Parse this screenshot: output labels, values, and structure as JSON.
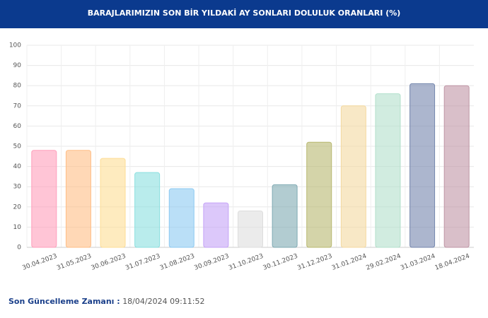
{
  "chart_data": {
    "type": "bar",
    "title": "BARAJLARIMIZIN SON BİR YILDAKİ AY SONLARI DOLULUK ORANLARI (%)",
    "categories": [
      "30.04.2023",
      "31.05.2023",
      "30.06.2023",
      "31.07.2023",
      "31.08.2023",
      "30.09.2023",
      "31.10.2023",
      "30.11.2023",
      "31.12.2023",
      "31.01.2024",
      "29.02.2024",
      "31.03.2024",
      "18.04.2024"
    ],
    "values": [
      48,
      48,
      44,
      37,
      29,
      22,
      18,
      31,
      52,
      70,
      76,
      81,
      80
    ],
    "colors": [
      "#ff9fbb",
      "#ffbe85",
      "#fddd95",
      "#8adfdf",
      "#8ccaf2",
      "#c5a3f7",
      "#dddddd",
      "#7faab3",
      "#b8b86f",
      "#f4d9a0",
      "#b2e0cb",
      "#7486ad",
      "#bf95a5"
    ],
    "ylim": [
      0,
      100
    ],
    "yticks": [
      0,
      10,
      20,
      30,
      40,
      50,
      60,
      70,
      80,
      90,
      100
    ],
    "grid": true
  },
  "footer": {
    "label": "Son Güncelleme Zamanı :",
    "value": "18/04/2024 09:11:52"
  }
}
